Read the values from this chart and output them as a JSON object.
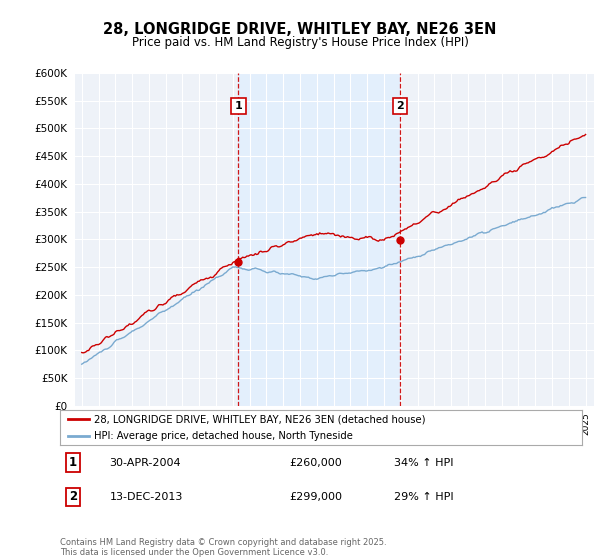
{
  "title_line1": "28, LONGRIDGE DRIVE, WHITLEY BAY, NE26 3EN",
  "title_line2": "Price paid vs. HM Land Registry's House Price Index (HPI)",
  "legend_label1": "28, LONGRIDGE DRIVE, WHITLEY BAY, NE26 3EN (detached house)",
  "legend_label2": "HPI: Average price, detached house, North Tyneside",
  "annotation1_label": "1",
  "annotation1_date": "30-APR-2004",
  "annotation1_price": 260000,
  "annotation1_hpi": "34% ↑ HPI",
  "annotation2_label": "2",
  "annotation2_date": "13-DEC-2013",
  "annotation2_price": 299000,
  "annotation2_hpi": "29% ↑ HPI",
  "footer": "Contains HM Land Registry data © Crown copyright and database right 2025.\nThis data is licensed under the Open Government Licence v3.0.",
  "line1_color": "#cc0000",
  "line2_color": "#7aaad0",
  "shade_color": "#ddeeff",
  "vline_color": "#cc0000",
  "background_color": "#ffffff",
  "plot_bg_color": "#eef2f8",
  "grid_color": "#ffffff",
  "ylim": [
    0,
    600000
  ],
  "yticks": [
    0,
    50000,
    100000,
    150000,
    200000,
    250000,
    300000,
    350000,
    400000,
    450000,
    500000,
    550000,
    600000
  ],
  "sale1_x": 2004.33,
  "sale1_y_red": 260000,
  "sale1_y_blue": 194000,
  "sale2_x": 2013.96,
  "sale2_y_red": 299000,
  "sale2_y_blue": 231000,
  "xmin": 1994.6,
  "xmax": 2025.5
}
